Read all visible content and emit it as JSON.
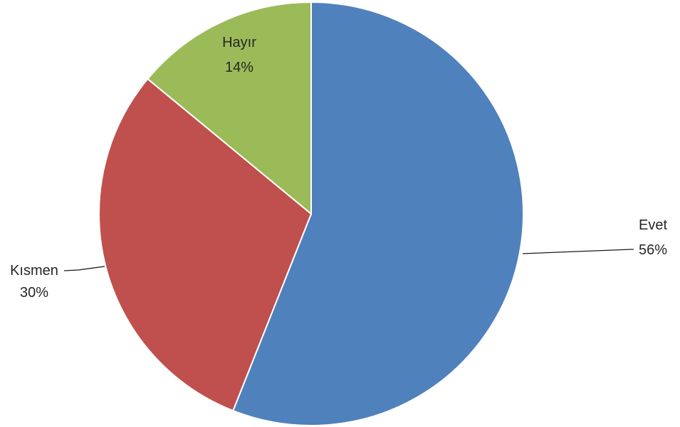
{
  "chart_data": {
    "type": "pie",
    "title": "",
    "start_angle_deg": 0,
    "direction": "clockwise",
    "slices": [
      {
        "name": "Evet",
        "value": 56,
        "percent_label": "56%",
        "color": "#4F81BD"
      },
      {
        "name": "Kısmen",
        "value": 30,
        "percent_label": "30%",
        "color": "#C0504D"
      },
      {
        "name": "Hayır",
        "value": 14,
        "percent_label": "14%",
        "color": "#9BBB59"
      }
    ],
    "legend": "none",
    "data_labels": "category and percentage"
  }
}
